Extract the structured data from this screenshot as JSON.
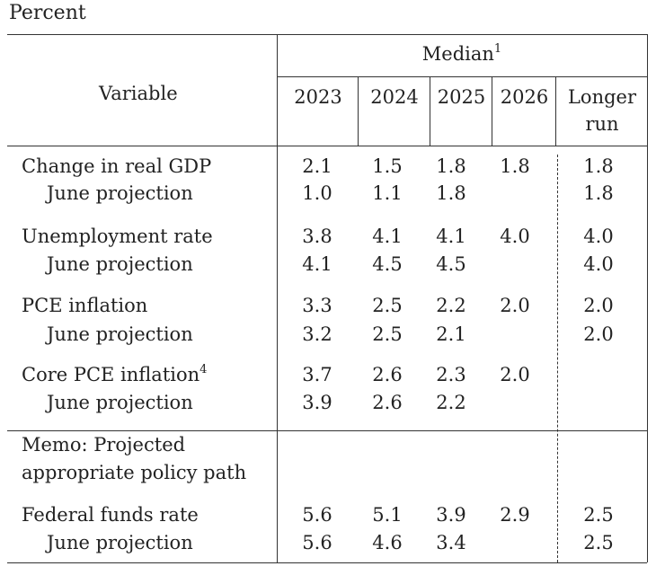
{
  "unit_label": "Percent",
  "header": {
    "variable_label": "Variable",
    "median_label": "Median",
    "median_footnote": "1",
    "years": [
      "2023",
      "2024",
      "2025",
      "2026"
    ],
    "longer_run_line1": "Longer",
    "longer_run_line2": "run"
  },
  "rows": [
    {
      "label": "Change in real GDP",
      "values": [
        "2.1",
        "1.5",
        "1.8",
        "1.8"
      ],
      "longer": "1.8"
    },
    {
      "label": "June projection",
      "values": [
        "1.0",
        "1.1",
        "1.8",
        ""
      ],
      "longer": "1.8"
    },
    {
      "label": "Unemployment rate",
      "values": [
        "3.8",
        "4.1",
        "4.1",
        "4.0"
      ],
      "longer": "4.0"
    },
    {
      "label": "June projection",
      "values": [
        "4.1",
        "4.5",
        "4.5",
        ""
      ],
      "longer": "4.0"
    },
    {
      "label": "PCE inflation",
      "values": [
        "3.3",
        "2.5",
        "2.2",
        "2.0"
      ],
      "longer": "2.0"
    },
    {
      "label": "June projection",
      "values": [
        "3.2",
        "2.5",
        "2.1",
        ""
      ],
      "longer": "2.0"
    },
    {
      "label": "Core PCE inflation",
      "footnote": "4",
      "values": [
        "3.7",
        "2.6",
        "2.3",
        "2.0"
      ],
      "longer": ""
    },
    {
      "label": "June projection",
      "values": [
        "3.9",
        "2.6",
        "2.2",
        ""
      ],
      "longer": ""
    }
  ],
  "memo": {
    "line1": "Memo: Projected",
    "line2": "appropriate policy path"
  },
  "memo_rows": [
    {
      "label": "Federal funds rate",
      "values": [
        "5.6",
        "5.1",
        "3.9",
        "2.9"
      ],
      "longer": "2.5"
    },
    {
      "label": "June projection",
      "values": [
        "5.6",
        "4.6",
        "3.4",
        ""
      ],
      "longer": "2.5"
    }
  ]
}
